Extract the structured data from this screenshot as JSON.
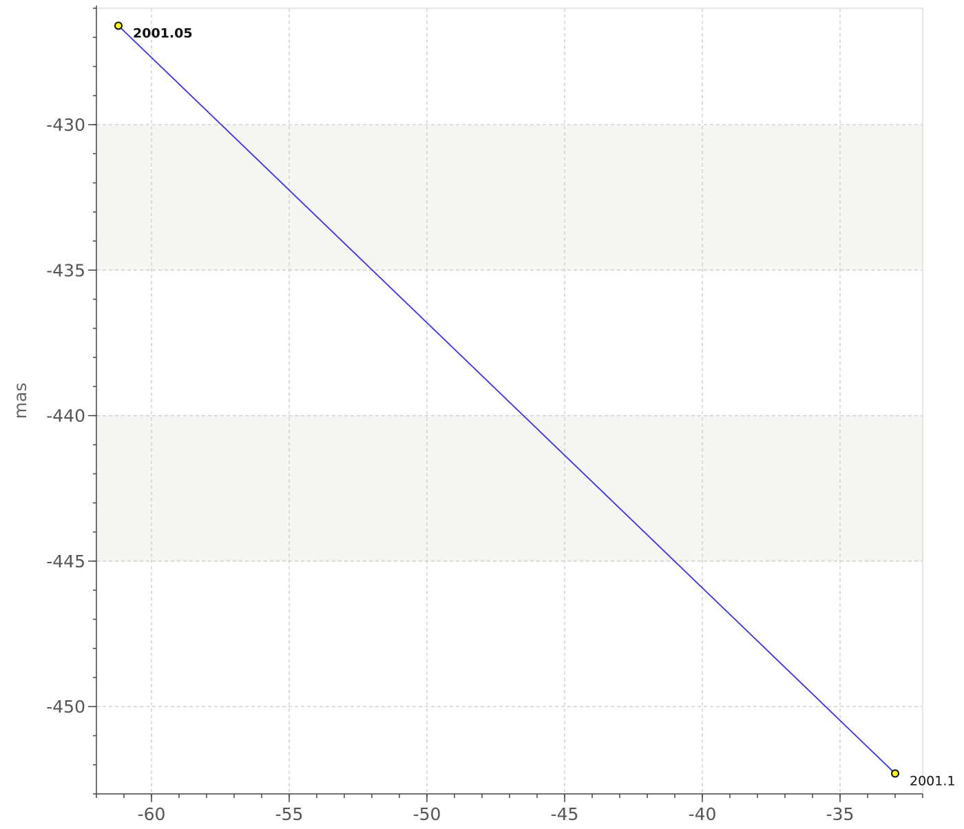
{
  "chart_data": {
    "type": "line",
    "title": "",
    "xlabel": "",
    "ylabel": "mas",
    "xlim": [
      -62,
      -32
    ],
    "ylim": [
      -453,
      -426
    ],
    "x_ticks": [
      -60,
      -55,
      -50,
      -45,
      -40,
      -35
    ],
    "y_ticks": [
      -430,
      -435,
      -440,
      -445,
      -450
    ],
    "grid": true,
    "band_fill": "#f5f5f1",
    "bands": [
      [
        -435,
        -430
      ],
      [
        -445,
        -440
      ]
    ],
    "series": [
      {
        "color": "#3b2ff0",
        "x": [
          -61.2,
          -33.0
        ],
        "y": [
          -426.6,
          -452.3
        ]
      }
    ],
    "markers": [
      {
        "x": -61.2,
        "y": -426.6,
        "label": "2001.05",
        "bold": true
      },
      {
        "x": -33.0,
        "y": -452.3,
        "label": "2001.1",
        "bold": false
      }
    ],
    "marker_color": "#ffff00"
  }
}
